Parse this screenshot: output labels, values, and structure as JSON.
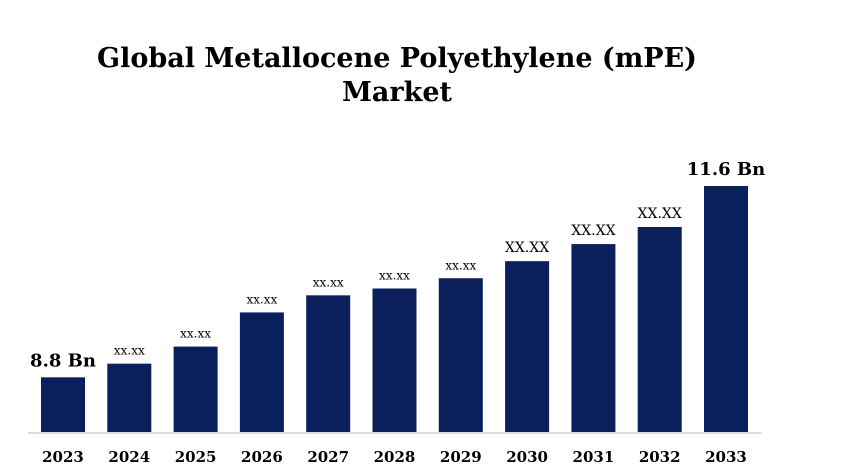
{
  "chart_data": {
    "type": "bar",
    "title_lines": [
      "Global Metallocene Polyethylene (mPE)",
      "Market"
    ],
    "categories": [
      "2023",
      "2024",
      "2025",
      "2026",
      "2027",
      "2028",
      "2029",
      "2030",
      "2031",
      "2032",
      "2033"
    ],
    "values": [
      8.8,
      9.0,
      9.25,
      9.75,
      10.0,
      10.1,
      10.25,
      10.5,
      10.75,
      11.0,
      11.6
    ],
    "data_labels": [
      "8.8 Bn",
      "xx.xx",
      "xx.xx",
      "xx.xx",
      "xx.xx",
      "xx.xx",
      "xx.xx",
      "XX.XX",
      "XX.XX",
      "XX.XX",
      "11.6 Bn"
    ],
    "label_emphasis": [
      "large",
      "small",
      "small",
      "small",
      "small",
      "small",
      "small",
      "medium",
      "medium",
      "medium",
      "large"
    ],
    "ylim": [
      8.0,
      11.8
    ],
    "bar_color": "#0a1f5c",
    "axis_color": "#c8c8c8",
    "grid": false,
    "legend": "none"
  }
}
